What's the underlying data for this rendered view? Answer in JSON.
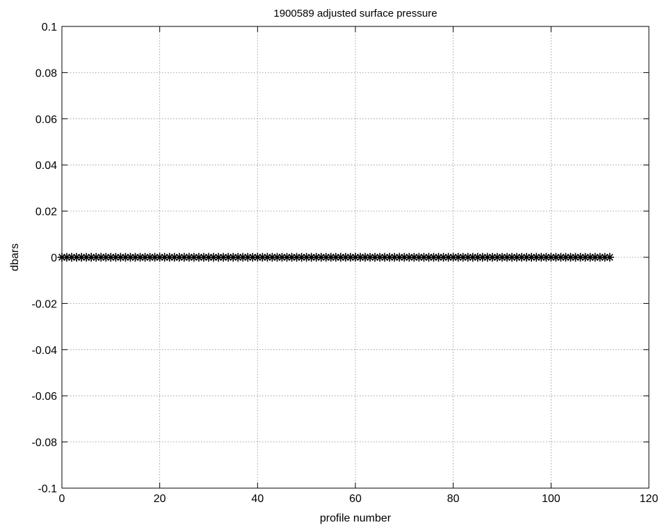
{
  "chart_data": {
    "type": "scatter",
    "title": "1900589 adjusted surface pressure",
    "xlabel": "profile number",
    "ylabel": "dbars",
    "xlim": [
      0,
      120
    ],
    "ylim": [
      -0.1,
      0.1
    ],
    "x_ticks": [
      0,
      20,
      40,
      60,
      80,
      100,
      120
    ],
    "x_tick_labels": [
      "0",
      "20",
      "40",
      "60",
      "80",
      "100",
      "120"
    ],
    "y_ticks": [
      0.1,
      0.08,
      0.06,
      0.04,
      0.02,
      0,
      -0.02,
      -0.04,
      -0.06,
      -0.08,
      -0.1
    ],
    "y_tick_labels": [
      "0.1",
      "0.08",
      "0.06",
      "0.04",
      "0.02",
      "0",
      "-0.02",
      "-0.04",
      "-0.06",
      "-0.08",
      "-0.1"
    ],
    "grid": true,
    "marker": "asterisk",
    "marker_color": "#000000",
    "series": [
      {
        "x": [
          0,
          1,
          2,
          3,
          4,
          5,
          6,
          7,
          8,
          9,
          10,
          11,
          12,
          13,
          14,
          15,
          16,
          17,
          18,
          19,
          20,
          21,
          22,
          23,
          24,
          25,
          26,
          27,
          28,
          29,
          30,
          31,
          32,
          33,
          34,
          35,
          36,
          37,
          38,
          39,
          40,
          41,
          42,
          43,
          44,
          45,
          46,
          47,
          48,
          49,
          50,
          51,
          52,
          53,
          54,
          55,
          56,
          57,
          58,
          59,
          60,
          61,
          62,
          63,
          64,
          65,
          66,
          67,
          68,
          69,
          70,
          71,
          72,
          73,
          74,
          75,
          76,
          77,
          78,
          79,
          80,
          81,
          82,
          83,
          84,
          85,
          86,
          87,
          88,
          89,
          90,
          91,
          92,
          93,
          94,
          95,
          96,
          97,
          98,
          99,
          100,
          101,
          102,
          103,
          104,
          105,
          106,
          107,
          108,
          109,
          110,
          111,
          112
        ],
        "y": [
          0,
          0,
          0,
          0,
          0,
          0,
          0,
          0,
          0,
          0,
          0,
          0,
          0,
          0,
          0,
          0,
          0,
          0,
          0,
          0,
          0,
          0,
          0,
          0,
          0,
          0,
          0,
          0,
          0,
          0,
          0,
          0,
          0,
          0,
          0,
          0,
          0,
          0,
          0,
          0,
          0,
          0,
          0,
          0,
          0,
          0,
          0,
          0,
          0,
          0,
          0,
          0,
          0,
          0,
          0,
          0,
          0,
          0,
          0,
          0,
          0,
          0,
          0,
          0,
          0,
          0,
          0,
          0,
          0,
          0,
          0,
          0,
          0,
          0,
          0,
          0,
          0,
          0,
          0,
          0,
          0,
          0,
          0,
          0,
          0,
          0,
          0,
          0,
          0,
          0,
          0,
          0,
          0,
          0,
          0,
          0,
          0,
          0,
          0,
          0,
          0,
          0,
          0,
          0,
          0,
          0,
          0,
          0,
          0,
          0,
          0,
          0,
          0
        ]
      }
    ]
  }
}
